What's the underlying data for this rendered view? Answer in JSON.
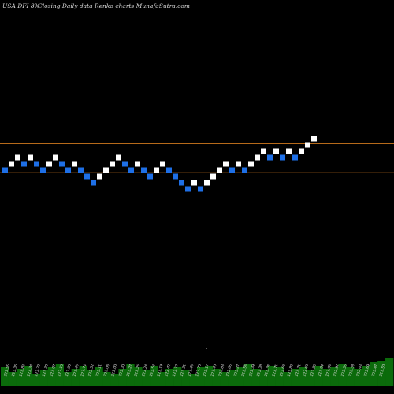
{
  "header": {
    "symbol_line": "USA DFI 8%~",
    "chart_desc": "Closing Daily data  Renko  charts MunafaSutra.com"
  },
  "chart_data": {
    "type": "renko",
    "title": "Closing Daily data Renko charts",
    "colors": {
      "up": "#ffffff",
      "down": "#1e6fe6",
      "hline": "#d07a1e",
      "volume": "#0b6b0b",
      "background": "#000000"
    },
    "bricks": [
      {
        "level": 0,
        "dir": "down"
      },
      {
        "level": 1,
        "dir": "up"
      },
      {
        "level": 2,
        "dir": "up"
      },
      {
        "level": 1,
        "dir": "down"
      },
      {
        "level": 2,
        "dir": "up"
      },
      {
        "level": 1,
        "dir": "down"
      },
      {
        "level": 0,
        "dir": "down"
      },
      {
        "level": 1,
        "dir": "up"
      },
      {
        "level": 2,
        "dir": "up"
      },
      {
        "level": 1,
        "dir": "down"
      },
      {
        "level": 0,
        "dir": "down"
      },
      {
        "level": 1,
        "dir": "up"
      },
      {
        "level": 0,
        "dir": "down"
      },
      {
        "level": -1,
        "dir": "down"
      },
      {
        "level": -2,
        "dir": "down"
      },
      {
        "level": -1,
        "dir": "up"
      },
      {
        "level": 0,
        "dir": "up"
      },
      {
        "level": 1,
        "dir": "up"
      },
      {
        "level": 2,
        "dir": "up"
      },
      {
        "level": 1,
        "dir": "down"
      },
      {
        "level": 0,
        "dir": "down"
      },
      {
        "level": 1,
        "dir": "up"
      },
      {
        "level": 0,
        "dir": "down"
      },
      {
        "level": -1,
        "dir": "down"
      },
      {
        "level": 0,
        "dir": "up"
      },
      {
        "level": 1,
        "dir": "up"
      },
      {
        "level": 0,
        "dir": "down"
      },
      {
        "level": -1,
        "dir": "down"
      },
      {
        "level": -2,
        "dir": "down"
      },
      {
        "level": -3,
        "dir": "down"
      },
      {
        "level": -2,
        "dir": "up"
      },
      {
        "level": -3,
        "dir": "down"
      },
      {
        "level": -2,
        "dir": "up"
      },
      {
        "level": -1,
        "dir": "up"
      },
      {
        "level": 0,
        "dir": "up"
      },
      {
        "level": 1,
        "dir": "up"
      },
      {
        "level": 0,
        "dir": "down"
      },
      {
        "level": 1,
        "dir": "up"
      },
      {
        "level": 0,
        "dir": "down"
      },
      {
        "level": 1,
        "dir": "up"
      },
      {
        "level": 2,
        "dir": "up"
      },
      {
        "level": 3,
        "dir": "up"
      },
      {
        "level": 2,
        "dir": "down"
      },
      {
        "level": 3,
        "dir": "up"
      },
      {
        "level": 2,
        "dir": "down"
      },
      {
        "level": 3,
        "dir": "up"
      },
      {
        "level": 2,
        "dir": "down"
      },
      {
        "level": 3,
        "dir": "up"
      },
      {
        "level": 4,
        "dir": "up"
      },
      {
        "level": 5,
        "dir": "up"
      }
    ],
    "horizontal_levels": [
      4.2,
      -0.4
    ],
    "x_labels": [
      "123.55",
      "123.36",
      "123.82",
      "123.34",
      "123.29",
      "123.36",
      "123.07",
      "123.10",
      "123.00",
      "123.45",
      "123.74",
      "123.52",
      "123.11",
      "123.06",
      "123.00",
      "123.30",
      "123.27",
      "123.26",
      "123.24",
      "123.54",
      "123.19",
      "123.42",
      "123.17",
      "123.31",
      "123.45",
      "123.70",
      "123.17",
      "123.40",
      "123.83",
      "123.65",
      "123.27",
      "123.55",
      "123.39",
      "123.38",
      "123.36",
      "123.71",
      "123.63",
      "123.82",
      "123.71",
      "123.63",
      "123.83",
      "123.94",
      "123.95",
      "123.97",
      "123.35",
      "123.38",
      "123.43",
      "123.69",
      "123.47",
      "123.50"
    ],
    "volume": [
      12,
      9,
      11,
      13,
      8,
      10,
      12,
      14,
      9,
      11,
      13,
      10,
      12,
      9,
      8,
      11,
      14,
      12,
      10,
      13,
      9,
      11,
      12,
      10,
      8,
      12,
      13,
      11,
      9,
      10,
      12,
      14,
      11,
      10,
      13,
      12,
      9,
      11,
      12,
      10,
      13,
      11,
      12,
      14,
      12,
      11,
      13,
      15,
      16,
      18
    ]
  }
}
